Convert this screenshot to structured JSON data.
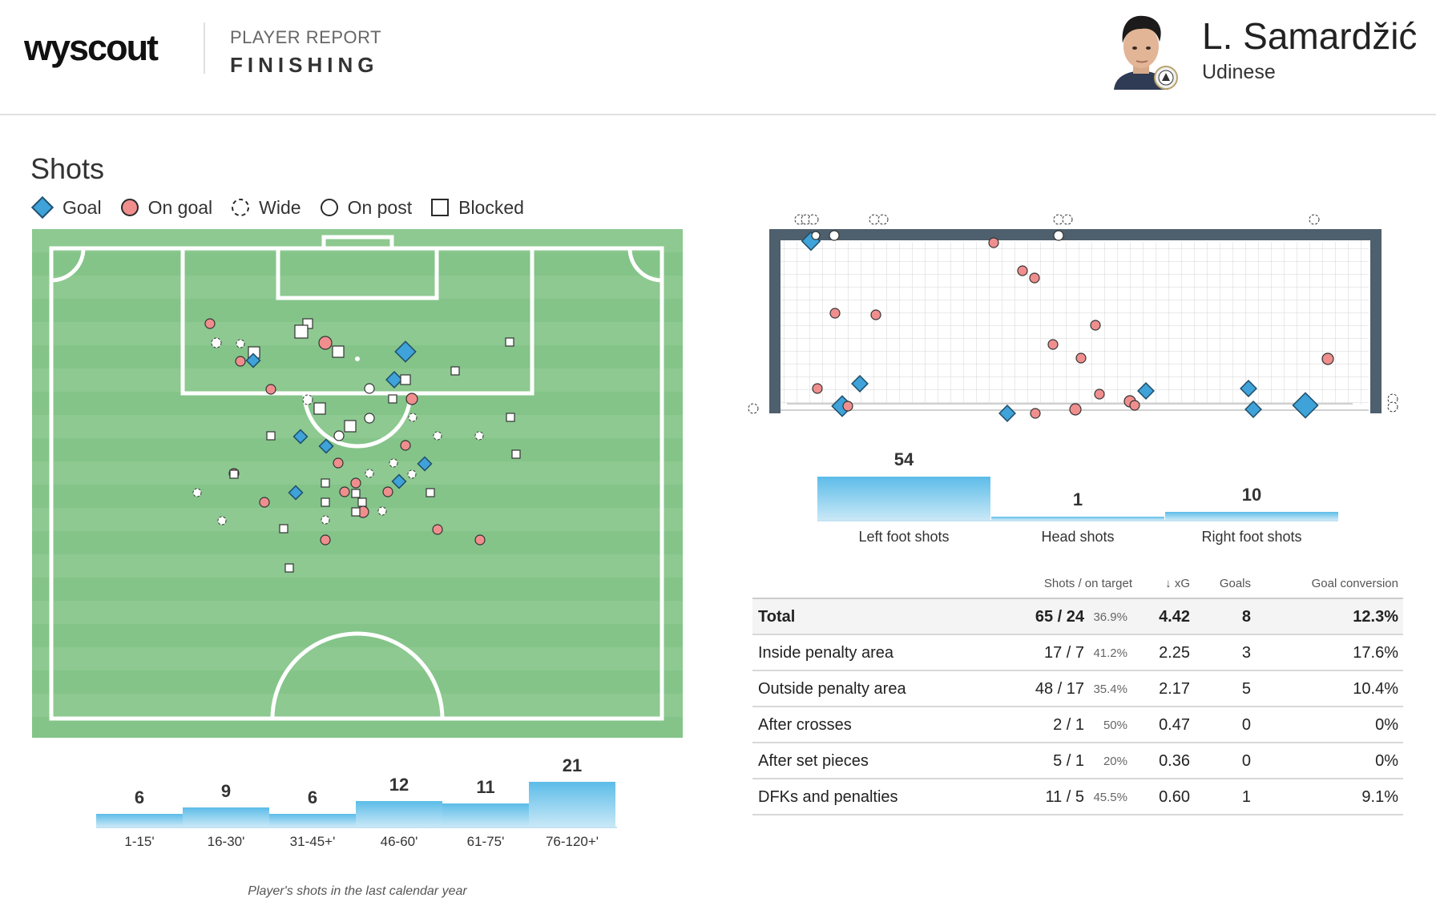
{
  "header": {
    "logo": "wyscout",
    "report_label": "PLAYER REPORT",
    "report_title": "FINISHING",
    "player_name": "L. Samardžić",
    "team": "Udinese"
  },
  "shots_section": {
    "title": "Shots",
    "legend": [
      {
        "label": "Goal",
        "icon": "diamond-icon"
      },
      {
        "label": "On goal",
        "icon": "circle-filled-icon"
      },
      {
        "label": "Wide",
        "icon": "dashed-circle-icon"
      },
      {
        "label": "On post",
        "icon": "circle-outline-icon"
      },
      {
        "label": "Blocked",
        "icon": "square-icon"
      }
    ],
    "caption": "Player's shots in the last calendar year"
  },
  "colors": {
    "goal": "#3fa2d8",
    "on_goal": "#f08e8e",
    "pitch_dark": "#84c489",
    "pitch_light": "#8dc990",
    "bar": "#6cc3ea",
    "goal_frame": "#4e5f6d"
  },
  "body_parts": [
    {
      "label": "Left foot shots",
      "value": "54",
      "count": 54
    },
    {
      "label": "Head shots",
      "value": "1",
      "count": 1
    },
    {
      "label": "Right foot shots",
      "value": "10",
      "count": 10
    }
  ],
  "stats_table": {
    "headers": {
      "shots": "Shots / on target",
      "xg": "↓ xG",
      "goals": "Goals",
      "conv": "Goal conversion"
    },
    "rows": [
      {
        "label": "Total",
        "shots": "65 / 24",
        "pct": "36.9%",
        "xg": "4.42",
        "goals": "8",
        "conv": "12.3%"
      },
      {
        "label": "Inside penalty area",
        "shots": "17 / 7",
        "pct": "41.2%",
        "xg": "2.25",
        "goals": "3",
        "conv": "17.6%"
      },
      {
        "label": "Outside penalty area",
        "shots": "48 / 17",
        "pct": "35.4%",
        "xg": "2.17",
        "goals": "5",
        "conv": "10.4%"
      },
      {
        "label": "After crosses",
        "shots": "2 / 1",
        "pct": "50%",
        "xg": "0.47",
        "goals": "0",
        "conv": "0%"
      },
      {
        "label": "After set pieces",
        "shots": "5 / 1",
        "pct": "20%",
        "xg": "0.36",
        "goals": "0",
        "conv": "0%"
      },
      {
        "label": "DFKs and penalties",
        "shots": "11 / 5",
        "pct": "45.5%",
        "xg": "0.60",
        "goals": "1",
        "conv": "9.1%"
      }
    ]
  },
  "time_bars": [
    {
      "label": "1-15'",
      "value": "6",
      "count": 6
    },
    {
      "label": "16-30'",
      "value": "9",
      "count": 9
    },
    {
      "label": "31-45+'",
      "value": "6",
      "count": 6
    },
    {
      "label": "46-60'",
      "value": "12",
      "count": 12
    },
    {
      "label": "61-75'",
      "value": "11",
      "count": 11
    },
    {
      "label": "76-120+'",
      "value": "21",
      "count": 21
    }
  ]
}
